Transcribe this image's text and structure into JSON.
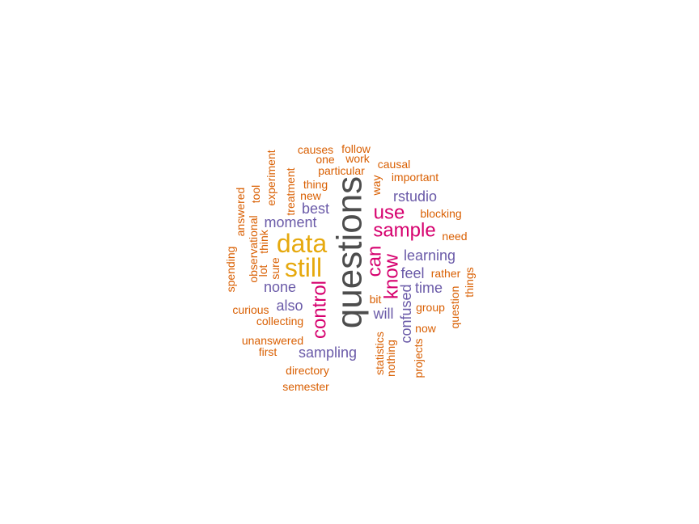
{
  "chart_data": {
    "type": "wordcloud",
    "palette": {
      "largest": "#4d4d4d",
      "large": "#e6a90e",
      "medium": "#d6006e",
      "small": "#6a5aa8",
      "smallest": "#d95f02"
    },
    "words": [
      {
        "text": "questions",
        "weight": 5,
        "rotated": true
      },
      {
        "text": "data",
        "weight": 4,
        "rotated": false
      },
      {
        "text": "still",
        "weight": 4,
        "rotated": false
      },
      {
        "text": "sample",
        "weight": 3,
        "rotated": false
      },
      {
        "text": "use",
        "weight": 3,
        "rotated": false
      },
      {
        "text": "can",
        "weight": 3,
        "rotated": true
      },
      {
        "text": "know",
        "weight": 3,
        "rotated": true
      },
      {
        "text": "control",
        "weight": 3,
        "rotated": true
      },
      {
        "text": "rstudio",
        "weight": 2,
        "rotated": false
      },
      {
        "text": "best",
        "weight": 2,
        "rotated": false
      },
      {
        "text": "moment",
        "weight": 2,
        "rotated": false
      },
      {
        "text": "learning",
        "weight": 2,
        "rotated": false
      },
      {
        "text": "feel",
        "weight": 2,
        "rotated": false
      },
      {
        "text": "time",
        "weight": 2,
        "rotated": false
      },
      {
        "text": "none",
        "weight": 2,
        "rotated": false
      },
      {
        "text": "also",
        "weight": 2,
        "rotated": false
      },
      {
        "text": "will",
        "weight": 2,
        "rotated": false
      },
      {
        "text": "confused",
        "weight": 2,
        "rotated": true
      },
      {
        "text": "sampling",
        "weight": 2,
        "rotated": false
      },
      {
        "text": "causes",
        "weight": 1,
        "rotated": false
      },
      {
        "text": "follow",
        "weight": 1,
        "rotated": false
      },
      {
        "text": "one",
        "weight": 1,
        "rotated": false
      },
      {
        "text": "work",
        "weight": 1,
        "rotated": false
      },
      {
        "text": "causal",
        "weight": 1,
        "rotated": false
      },
      {
        "text": "particular",
        "weight": 1,
        "rotated": false
      },
      {
        "text": "important",
        "weight": 1,
        "rotated": false
      },
      {
        "text": "thing",
        "weight": 1,
        "rotated": false
      },
      {
        "text": "way",
        "weight": 1,
        "rotated": true
      },
      {
        "text": "new",
        "weight": 1,
        "rotated": false
      },
      {
        "text": "experiment",
        "weight": 1,
        "rotated": true
      },
      {
        "text": "treatment",
        "weight": 1,
        "rotated": true
      },
      {
        "text": "tool",
        "weight": 1,
        "rotated": true
      },
      {
        "text": "answered",
        "weight": 1,
        "rotated": true
      },
      {
        "text": "observational",
        "weight": 1,
        "rotated": true
      },
      {
        "text": "think",
        "weight": 1,
        "rotated": true
      },
      {
        "text": "lot",
        "weight": 1,
        "rotated": true
      },
      {
        "text": "sure",
        "weight": 1,
        "rotated": true
      },
      {
        "text": "spending",
        "weight": 1,
        "rotated": true
      },
      {
        "text": "blocking",
        "weight": 1,
        "rotated": false
      },
      {
        "text": "need",
        "weight": 1,
        "rotated": false
      },
      {
        "text": "rather",
        "weight": 1,
        "rotated": false
      },
      {
        "text": "things",
        "weight": 1,
        "rotated": true
      },
      {
        "text": "question",
        "weight": 1,
        "rotated": true
      },
      {
        "text": "bit",
        "weight": 1,
        "rotated": false
      },
      {
        "text": "group",
        "weight": 1,
        "rotated": false
      },
      {
        "text": "now",
        "weight": 1,
        "rotated": false
      },
      {
        "text": "curious",
        "weight": 1,
        "rotated": false
      },
      {
        "text": "collecting",
        "weight": 1,
        "rotated": false
      },
      {
        "text": "unanswered",
        "weight": 1,
        "rotated": false
      },
      {
        "text": "first",
        "weight": 1,
        "rotated": false
      },
      {
        "text": "statistics",
        "weight": 1,
        "rotated": true
      },
      {
        "text": "nothing",
        "weight": 1,
        "rotated": true
      },
      {
        "text": "projects",
        "weight": 1,
        "rotated": true
      },
      {
        "text": "directory",
        "weight": 1,
        "rotated": false
      },
      {
        "text": "semester",
        "weight": 1,
        "rotated": false
      }
    ]
  }
}
